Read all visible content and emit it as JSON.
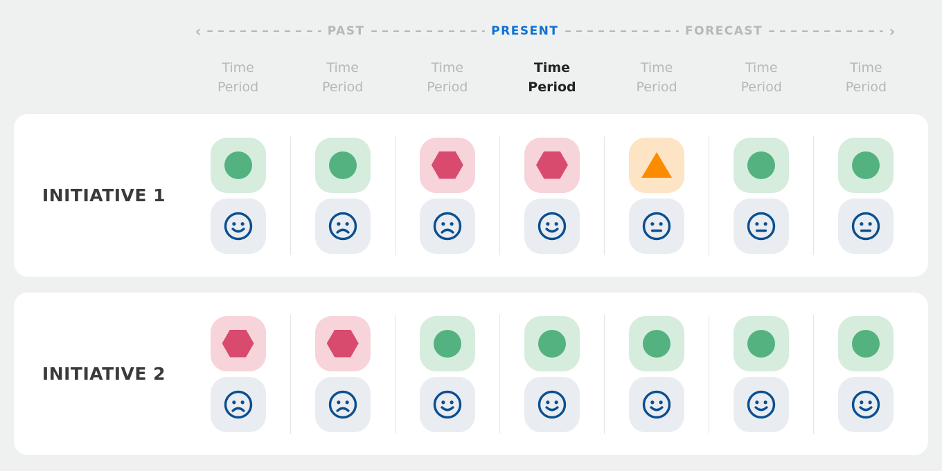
{
  "timeline": {
    "past_label": "PAST",
    "present_label": "PRESENT",
    "forecast_label": "FORECAST",
    "left_arrow": "‹",
    "right_arrow": "›"
  },
  "columns": [
    {
      "label": "Time Period",
      "state": "past"
    },
    {
      "label": "Time Period",
      "state": "past"
    },
    {
      "label": "Time Period",
      "state": "past"
    },
    {
      "label": "Time Period",
      "state": "current"
    },
    {
      "label": "Time Period",
      "state": "future"
    },
    {
      "label": "Time Period",
      "state": "future"
    },
    {
      "label": "Time Period",
      "state": "future"
    }
  ],
  "icons": {
    "on-track": "circle",
    "at-risk": "triangle",
    "off-track": "hexagon",
    "mood": "face"
  },
  "initiatives": [
    {
      "label": "INITIATIVE 1",
      "periods": [
        {
          "status": "on-track",
          "mood": "happy"
        },
        {
          "status": "on-track",
          "mood": "sad"
        },
        {
          "status": "off-track",
          "mood": "sad"
        },
        {
          "status": "off-track",
          "mood": "happy"
        },
        {
          "status": "at-risk",
          "mood": "neutral"
        },
        {
          "status": "on-track",
          "mood": "neutral"
        },
        {
          "status": "on-track",
          "mood": "neutral"
        }
      ]
    },
    {
      "label": "INITIATIVE 2",
      "periods": [
        {
          "status": "off-track",
          "mood": "sad"
        },
        {
          "status": "off-track",
          "mood": "sad"
        },
        {
          "status": "on-track",
          "mood": "happy"
        },
        {
          "status": "on-track",
          "mood": "happy"
        },
        {
          "status": "on-track",
          "mood": "happy"
        },
        {
          "status": "on-track",
          "mood": "happy"
        },
        {
          "status": "on-track",
          "mood": "happy"
        }
      ]
    }
  ],
  "colors": {
    "page-bg": "#eff1f1",
    "card-bg": "#ffffff",
    "gray-text": "#b5b8ba",
    "dark-text": "#222325",
    "initiative-text": "#3a3a3c",
    "blue": "#0e71d3",
    "dash": "#b4b7b9",
    "divider": "#e4e4e4",
    "green": "#53b27f",
    "green-bg": "#d6ecdd",
    "red": "#d84a6e",
    "red-bg": "#f7d3da",
    "orange": "#fb8c00",
    "orange-bg": "#fce4c5",
    "mood-bg": "#e9edf2",
    "face": "#0b4f90"
  }
}
